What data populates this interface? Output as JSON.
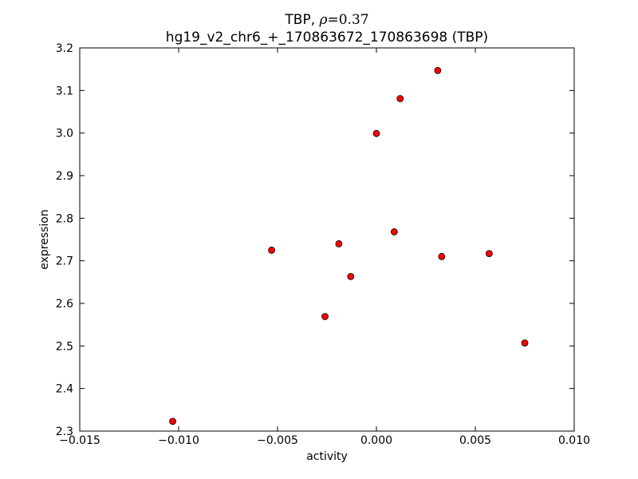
{
  "chart_data": {
    "type": "scatter",
    "title_prefix": "TBP, ",
    "title_rho_symbol": "ρ",
    "title_rho_value": "=0.37",
    "subtitle": "hg19_v2_chr6_+_170863672_170863698 (TBP)",
    "xlabel": "activity",
    "ylabel": "expression",
    "xlim": [
      -0.015,
      0.01
    ],
    "ylim": [
      2.3,
      3.2
    ],
    "xticks": [
      -0.015,
      -0.01,
      -0.005,
      0.0,
      0.005,
      0.01
    ],
    "xtick_labels": [
      "−0.015",
      "−0.010",
      "−0.005",
      "0.000",
      "0.005",
      "0.010"
    ],
    "yticks": [
      2.3,
      2.4,
      2.5,
      2.6,
      2.7,
      2.8,
      2.9,
      3.0,
      3.1,
      3.2
    ],
    "ytick_labels": [
      "2.3",
      "2.4",
      "2.5",
      "2.6",
      "2.7",
      "2.8",
      "2.9",
      "3.0",
      "3.1",
      "3.2"
    ],
    "grid": false,
    "marker_color": "#ff0000",
    "marker_edge_color": "#000000",
    "points": [
      {
        "x": -0.0103,
        "y": 2.323
      },
      {
        "x": -0.0053,
        "y": 2.725
      },
      {
        "x": -0.0026,
        "y": 2.569
      },
      {
        "x": -0.0019,
        "y": 2.74
      },
      {
        "x": -0.0013,
        "y": 2.663
      },
      {
        "x": 0.0,
        "y": 2.999
      },
      {
        "x": 0.0009,
        "y": 2.768
      },
      {
        "x": 0.0012,
        "y": 3.081
      },
      {
        "x": 0.0031,
        "y": 3.147
      },
      {
        "x": 0.0033,
        "y": 2.71
      },
      {
        "x": 0.0057,
        "y": 2.717
      },
      {
        "x": 0.0075,
        "y": 2.507
      }
    ]
  }
}
